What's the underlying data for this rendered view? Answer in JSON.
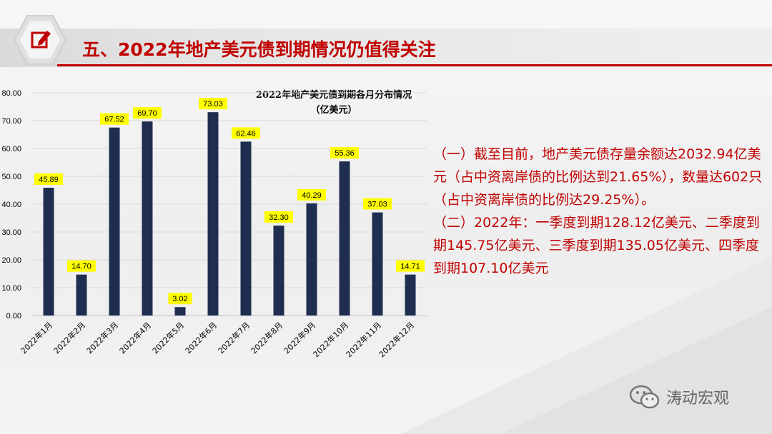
{
  "header": {
    "title": "五、2022年地产美元债到期情况仍值得关注",
    "icon": "edit-icon",
    "accent_color": "#c00000"
  },
  "chart_data": {
    "type": "bar",
    "title": "2022年地产美元债到期各月分布情况",
    "subtitle": "（亿美元）",
    "categories": [
      "2022年1月",
      "2022年2月",
      "2022年3月",
      "2022年4月",
      "2022年5月",
      "2022年6月",
      "2022年7月",
      "2022年8月",
      "2022年9月",
      "2022年10月",
      "2022年11月",
      "2022年12月"
    ],
    "values": [
      45.89,
      14.7,
      67.52,
      69.7,
      3.02,
      73.03,
      62.46,
      32.3,
      40.29,
      55.36,
      37.03,
      14.71
    ],
    "value_labels": [
      "45.89",
      "14.70",
      "67.52",
      "69.70",
      "3.02",
      "73.03",
      "62.46",
      "32.30",
      "40.29",
      "55.36",
      "37.03",
      "14.71"
    ],
    "ylim": [
      0,
      80
    ],
    "yticks": [
      "0.00",
      "10.00",
      "20.00",
      "30.00",
      "40.00",
      "50.00",
      "60.00",
      "70.00",
      "80.00"
    ],
    "grid": true,
    "bar_color": "#1f2d50",
    "label_bg_color": "#ffff00"
  },
  "description": {
    "p1": "（一）截至目前，地产美元债存量余额达2032.94亿美元（占中资离岸债的比例达到21.65%），数量达602只（占中资离岸债的比例达29.25%）。",
    "p2": "（二）2022年：一季度到期128.12亿美元、二季度到期145.75亿美元、三季度到期135.05亿美元、四季度到期107.10亿美元"
  },
  "watermark": {
    "text": "涛动宏观",
    "icon": "wechat-icon"
  }
}
